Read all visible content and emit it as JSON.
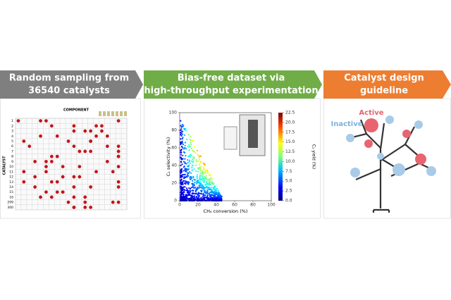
{
  "panels": [
    {
      "header": {
        "lines": [
          "Random sampling from",
          "36540 catalysts"
        ]
      },
      "grid": {
        "column_title": "COMPONENT",
        "row_title": "CATALYST",
        "rows": [
          "1",
          "2",
          "3",
          "4",
          "5",
          "6",
          "7",
          "8",
          "9",
          "10",
          "11",
          "12",
          "13",
          "14",
          "15",
          "16",
          "299",
          "300"
        ]
      }
    },
    {
      "header": {
        "lines": [
          "Bias-free dataset via",
          "high-throughput experimentation"
        ]
      },
      "plot": {
        "xlabel": "CH₄ conversion (%)",
        "ylabel": "C₂ selectivity (%)",
        "colorbar_label": "C₂ yield (%)",
        "xlim": [
          0,
          100
        ],
        "xticks": [
          0,
          20,
          40,
          60,
          80,
          100
        ],
        "ylim": [
          0,
          100
        ],
        "yticks": [
          0,
          20,
          40,
          60,
          80,
          100
        ],
        "clim": [
          0,
          22.5
        ],
        "cticks": [
          {
            "value": 0,
            "label": "0.0"
          },
          {
            "value": 2.5,
            "label": "2.5"
          },
          {
            "value": 5,
            "label": "5.0"
          },
          {
            "value": 7.5,
            "label": "7.5"
          },
          {
            "value": 10,
            "label": "10.0"
          },
          {
            "value": 12.5,
            "label": "12.5"
          },
          {
            "value": 15,
            "label": "15.0"
          },
          {
            "value": 17.5,
            "label": "17.5"
          },
          {
            "value": 20,
            "label": "20.0"
          },
          {
            "value": 22.5,
            "label": "22.5"
          }
        ]
      }
    },
    {
      "header": {
        "lines": [
          "Catalyst design",
          "guideline"
        ]
      },
      "tree": {
        "active_label": "Active",
        "inactive_label": "Inactive"
      }
    }
  ]
}
